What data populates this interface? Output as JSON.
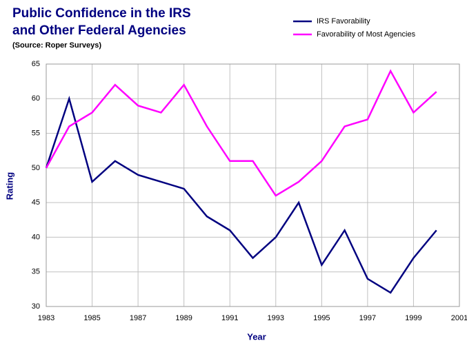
{
  "chart_data": {
    "type": "line",
    "title": [
      "Public Confidence in the IRS",
      "and Other Federal Agencies"
    ],
    "subtitle": "(Source:  Roper Surveys)",
    "x_label": "Year",
    "y_label": "Rating",
    "x": [
      1983,
      1984,
      1985,
      1986,
      1987,
      1988,
      1989,
      1990,
      1991,
      1992,
      1993,
      1994,
      1995,
      1996,
      1997,
      1998,
      1999,
      2000
    ],
    "series": [
      {
        "name": "IRS Favorability",
        "color": "#000080",
        "values": [
          50,
          60,
          48,
          51,
          49,
          48,
          47,
          43,
          41,
          37,
          40,
          45,
          36,
          41,
          34,
          32,
          37,
          41
        ]
      },
      {
        "name": "Favorability of Most Agencies",
        "color": "#ff00ff",
        "values": [
          50,
          56,
          58,
          62,
          59,
          58,
          62,
          56,
          51,
          51,
          46,
          48,
          51,
          56,
          57,
          64,
          58,
          61
        ]
      }
    ],
    "xlim": [
      1983,
      2001
    ],
    "xticks": [
      1983,
      1985,
      1987,
      1989,
      1991,
      1993,
      1995,
      1997,
      1999,
      2001
    ],
    "ylim": [
      30,
      65
    ],
    "yticks": [
      30,
      35,
      40,
      45,
      50,
      55,
      60,
      65
    ],
    "grid": true
  }
}
